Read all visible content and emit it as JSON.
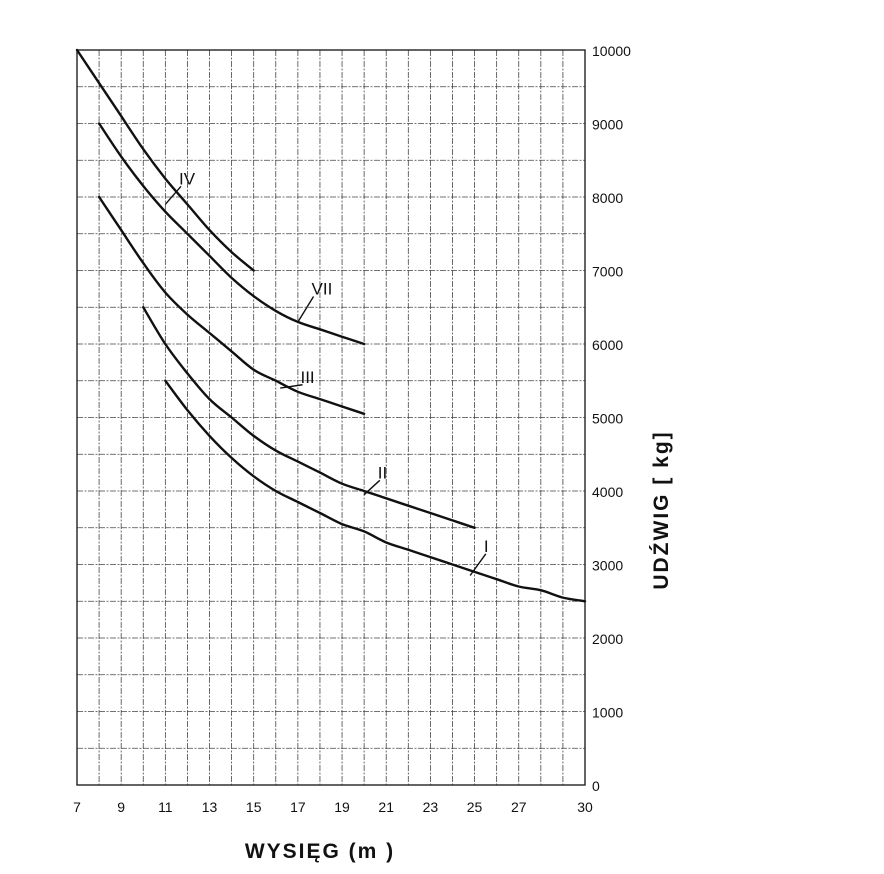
{
  "chart_data": {
    "type": "line",
    "title": "",
    "xlabel": "WYSIĘG   (m )",
    "ylabel": "UDŹWIG   [ kg]",
    "xlim": [
      7,
      30
    ],
    "ylim": [
      0,
      10000
    ],
    "x_ticks": [
      7,
      9,
      11,
      13,
      15,
      17,
      19,
      21,
      23,
      25,
      27,
      30
    ],
    "x_tick_labels": [
      "7",
      "9",
      "11",
      "13",
      "15",
      "17",
      "19",
      "21",
      "23",
      "25",
      "27",
      "30"
    ],
    "y_ticks": [
      0,
      1000,
      2000,
      3000,
      4000,
      5000,
      6000,
      7000,
      8000,
      9000,
      10000
    ],
    "y_tick_labels": [
      "0",
      "1000",
      "2000",
      "3000",
      "4000",
      "5000",
      "6000",
      "7000",
      "8000",
      "9000",
      "10000"
    ],
    "grid": true,
    "series": [
      {
        "name": "IV",
        "x": [
          7,
          8,
          9,
          10,
          11,
          12,
          13,
          14,
          15
        ],
        "values": [
          10000,
          9550,
          9100,
          8650,
          8250,
          7900,
          7550,
          7250,
          7000
        ],
        "label_at": [
          11.8,
          8200
        ],
        "leader_at": [
          11.0,
          7900
        ]
      },
      {
        "name": "VII",
        "x": [
          8,
          9,
          10,
          11,
          12,
          13,
          14,
          15,
          16,
          17,
          18,
          19,
          20
        ],
        "values": [
          9000,
          8550,
          8150,
          7800,
          7500,
          7200,
          6900,
          6650,
          6450,
          6300,
          6200,
          6100,
          6000
        ],
        "label_at": [
          17.8,
          6700
        ],
        "leader_at": [
          17.0,
          6300
        ]
      },
      {
        "name": "III",
        "x": [
          8,
          9,
          10,
          11,
          12,
          13,
          14,
          15,
          16,
          17,
          18,
          19,
          20
        ],
        "values": [
          8000,
          7550,
          7100,
          6700,
          6400,
          6150,
          5900,
          5650,
          5500,
          5350,
          5250,
          5150,
          5050
        ],
        "label_at": [
          17.3,
          5500
        ],
        "leader_at": [
          16.2,
          5400
        ]
      },
      {
        "name": "II",
        "x": [
          10,
          11,
          12,
          13,
          14,
          15,
          16,
          17,
          18,
          19,
          20,
          21,
          22,
          23,
          24,
          25
        ],
        "values": [
          6500,
          6000,
          5600,
          5250,
          5000,
          4750,
          4550,
          4400,
          4250,
          4100,
          4000,
          3900,
          3800,
          3700,
          3600,
          3500
        ],
        "label_at": [
          20.8,
          4200
        ],
        "leader_at": [
          20.0,
          3950
        ]
      },
      {
        "name": "I",
        "x": [
          11,
          12,
          13,
          14,
          15,
          16,
          17,
          18,
          19,
          20,
          21,
          22,
          23,
          24,
          25,
          26,
          27,
          28,
          29,
          30
        ],
        "values": [
          5500,
          5100,
          4750,
          4450,
          4200,
          4000,
          3850,
          3700,
          3550,
          3450,
          3300,
          3200,
          3100,
          3000,
          2900,
          2800,
          2700,
          2650,
          2550,
          2500
        ],
        "label_at": [
          25.6,
          3200
        ],
        "leader_at": [
          24.8,
          2850
        ]
      }
    ]
  }
}
